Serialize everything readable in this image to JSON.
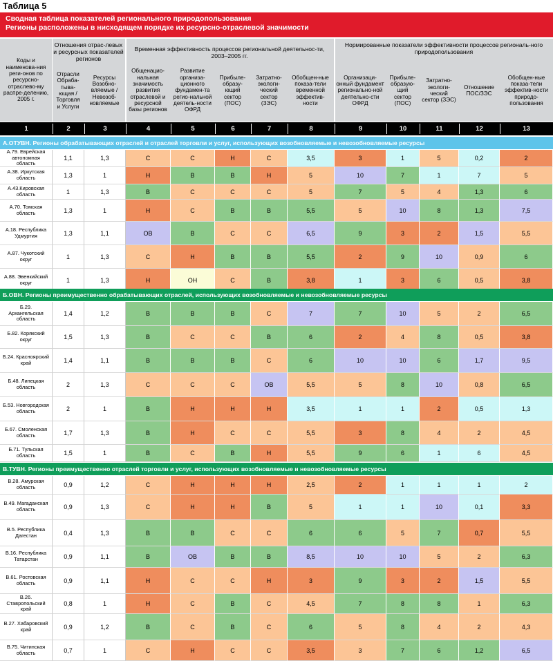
{
  "table_label": "Таблица 5",
  "title": {
    "line1": "Сводная таблица показателей регионального природопользования",
    "line2": "Регионы расположены в нисходящем порядке их ресурсно-отраслевой значимости"
  },
  "header": {
    "col1": "Коды и наименова-ния реги-онов по ресурсно-отраслево-му распре-делению, 2005 г.",
    "group_relations": "Отношения отрас-левых и ресурсных показателей регионов",
    "group_time": "Временная эффективность процессов региональной деятельнос-ти, 2003–2005 гг.",
    "group_norm": "Нормированные показатели эффективности процессов региональ-ного природопользования",
    "col2": "Отрасли Обраба-тыва-ющая / Торговля и Услуги",
    "col3": "Ресурсы Возобно-вляемые / Невозоб-новляемые",
    "col4": "Общенацио-нальная значимость развития отраслевой и ресурсной базы регионов",
    "col5": "Развитие организа-ционного фундамен-та регио-нальной деятель-ности ОФРД",
    "col6": "Прибыле-образу-ющий сектор (ПОС)",
    "col7": "Затратно-экологи-ческий сектор (ЗЭС)",
    "col8": "Обобщен-ные показа-тели временной эффектив-ности",
    "col9": "Организаци-онный фундамент регионально-ной деятельно-сти ОФРД",
    "col10": "Прибыле-образую-щий сектор (ПОС)",
    "col11": "Затратно-экологи-ческий сектор (ЗЭС)",
    "col12": "Отношение ПОС/ЗЭС",
    "col13": "Обобщен-ные показа-тели эффектив-ности природо-пользования"
  },
  "col_numbers": [
    "1",
    "2",
    "3",
    "4",
    "5",
    "6",
    "7",
    "8",
    "9",
    "10",
    "11",
    "12",
    "13"
  ],
  "colors": {
    "title_bg": "#e01b2b",
    "section_A": "#5ec4ea",
    "section_B": "#0f9e5a",
    "section_V": "#0f9e5a",
    "H": "#ef8d5d",
    "C": "#fcc596",
    "B": "#8dca8b",
    "OV": "#c6c4f2",
    "ON": "#fbfcd7",
    "L": "#ccf7f7"
  },
  "sections": [
    {
      "title": "А.ОТУВН. Регионы обрабатывающих отраслей и отраслей торговли и услуг, использующих возобновляемые и невозобновляемые ресурсы",
      "color": "#5ec4ea",
      "rows": [
        {
          "name": "А.79. Еврейская автономная область",
          "c2": "1,1",
          "c3": "1,3",
          "c4": [
            "С",
            "C"
          ],
          "c5": [
            "С",
            "C"
          ],
          "c6": [
            "Н",
            "H"
          ],
          "c7": [
            "С",
            "C"
          ],
          "c8": [
            "3,5",
            "L"
          ],
          "c9": [
            "3",
            "H"
          ],
          "c10": [
            "1",
            "L"
          ],
          "c11": [
            "5",
            "C"
          ],
          "c12": [
            "0,2",
            "L"
          ],
          "c13": [
            "2",
            "H"
          ]
        },
        {
          "name": "А.38. Иркутская область",
          "c2": "1,3",
          "c3": "1",
          "c4": [
            "Н",
            "H"
          ],
          "c5": [
            "В",
            "B"
          ],
          "c6": [
            "В",
            "B"
          ],
          "c7": [
            "Н",
            "H"
          ],
          "c8": [
            "5",
            "C"
          ],
          "c9": [
            "10",
            "OV"
          ],
          "c10": [
            "7",
            "B"
          ],
          "c11": [
            "1",
            "L"
          ],
          "c12": [
            "7",
            "L"
          ],
          "c13": [
            "5",
            "C"
          ]
        },
        {
          "name": "А.43.Кировская область",
          "c2": "1",
          "c3": "1,3",
          "c4": [
            "В",
            "B"
          ],
          "c5": [
            "С",
            "C"
          ],
          "c6": [
            "С",
            "C"
          ],
          "c7": [
            "С",
            "C"
          ],
          "c8": [
            "5",
            "C"
          ],
          "c9": [
            "7",
            "B"
          ],
          "c10": [
            "5",
            "C"
          ],
          "c11": [
            "4",
            "C"
          ],
          "c12": [
            "1,3",
            "B"
          ],
          "c13": [
            "6",
            "B"
          ]
        },
        {
          "name": "А.70. Томская область",
          "c2": "1,3",
          "c3": "1",
          "c4": [
            "Н",
            "H"
          ],
          "c5": [
            "С",
            "C"
          ],
          "c6": [
            "В",
            "B"
          ],
          "c7": [
            "В",
            "B"
          ],
          "c8": [
            "5,5",
            "B"
          ],
          "c9": [
            "5",
            "C"
          ],
          "c10": [
            "10",
            "OV"
          ],
          "c11": [
            "8",
            "B"
          ],
          "c12": [
            "1,3",
            "B"
          ],
          "c13": [
            "7,5",
            "OV"
          ]
        },
        {
          "name": "А.18. Республика Удмуртия",
          "c2": "1,3",
          "c3": "1,1",
          "c4": [
            "ОВ",
            "OV"
          ],
          "c5": [
            "В",
            "B"
          ],
          "c6": [
            "С",
            "C"
          ],
          "c7": [
            "С",
            "C"
          ],
          "c8": [
            "6,5",
            "OV"
          ],
          "c9": [
            "9",
            "B"
          ],
          "c10": [
            "3",
            "H"
          ],
          "c11": [
            "2",
            "H"
          ],
          "c12": [
            "1,5",
            "OV"
          ],
          "c13": [
            "5,5",
            "C"
          ]
        },
        {
          "name": "А.87. Чукотский округ",
          "c2": "1",
          "c3": "1,3",
          "c4": [
            "С",
            "C"
          ],
          "c5": [
            "Н",
            "H"
          ],
          "c6": [
            "В",
            "B"
          ],
          "c7": [
            "В",
            "B"
          ],
          "c8": [
            "5,5",
            "B"
          ],
          "c9": [
            "2",
            "H"
          ],
          "c10": [
            "9",
            "B"
          ],
          "c11": [
            "10",
            "OV"
          ],
          "c12": [
            "0,9",
            "C"
          ],
          "c13": [
            "6",
            "B"
          ]
        },
        {
          "name": "А.88. Эвенкийский округ",
          "c2": "1",
          "c3": "1,3",
          "c4": [
            "Н",
            "H"
          ],
          "c5": [
            "ОН",
            "ON"
          ],
          "c6": [
            "С",
            "C"
          ],
          "c7": [
            "В",
            "B"
          ],
          "c8": [
            "3,8",
            "H"
          ],
          "c9": [
            "1",
            "L"
          ],
          "c10": [
            "3",
            "H"
          ],
          "c11": [
            "6",
            "B"
          ],
          "c12": [
            "0,5",
            "C"
          ],
          "c13": [
            "3,8",
            "H"
          ]
        }
      ]
    },
    {
      "title": "Б.ОВН. Регионы преимущественно обрабатывающих отраслей, использующих возобновляемые и невозобновляемые ресурсы",
      "color": "#0f9e5a",
      "rows": [
        {
          "name": "Б.29. Архангельская область",
          "c2": "1,4",
          "c3": "1,2",
          "c4": [
            "В",
            "B"
          ],
          "c5": [
            "В",
            "B"
          ],
          "c6": [
            "В",
            "B"
          ],
          "c7": [
            "С",
            "C"
          ],
          "c8": [
            "7",
            "OV"
          ],
          "c9": [
            "7",
            "B"
          ],
          "c10": [
            "10",
            "OV"
          ],
          "c11": [
            "5",
            "C"
          ],
          "c12": [
            "2",
            "C"
          ],
          "c13": [
            "6,5",
            "B"
          ]
        },
        {
          "name": "Б.82. Корякский округ",
          "c2": "1,5",
          "c3": "1,3",
          "c4": [
            "В",
            "B"
          ],
          "c5": [
            "С",
            "C"
          ],
          "c6": [
            "С",
            "C"
          ],
          "c7": [
            "В",
            "B"
          ],
          "c8": [
            "6",
            "B"
          ],
          "c9": [
            "2",
            "H"
          ],
          "c10": [
            "4",
            "C"
          ],
          "c11": [
            "8",
            "B"
          ],
          "c12": [
            "0,5",
            "C"
          ],
          "c13": [
            "3,8",
            "H"
          ]
        },
        {
          "name": "Б.24. Красноярский край",
          "c2": "1,4",
          "c3": "1,1",
          "c4": [
            "В",
            "B"
          ],
          "c5": [
            "В",
            "B"
          ],
          "c6": [
            "В",
            "B"
          ],
          "c7": [
            "С",
            "C"
          ],
          "c8": [
            "6",
            "B"
          ],
          "c9": [
            "10",
            "OV"
          ],
          "c10": [
            "10",
            "OV"
          ],
          "c11": [
            "6",
            "B"
          ],
          "c12": [
            "1,7",
            "OV"
          ],
          "c13": [
            "9,5",
            "OV"
          ]
        },
        {
          "name": "Б.48. Липецкая область",
          "c2": "2",
          "c3": "1,3",
          "c4": [
            "С",
            "C"
          ],
          "c5": [
            "С",
            "C"
          ],
          "c6": [
            "С",
            "C"
          ],
          "c7": [
            "ОВ",
            "OV"
          ],
          "c8": [
            "5,5",
            "C"
          ],
          "c9": [
            "5",
            "C"
          ],
          "c10": [
            "8",
            "B"
          ],
          "c11": [
            "10",
            "OV"
          ],
          "c12": [
            "0,8",
            "C"
          ],
          "c13": [
            "6,5",
            "B"
          ]
        },
        {
          "name": "Б.53. Новгородская область",
          "c2": "2",
          "c3": "1",
          "c4": [
            "В",
            "B"
          ],
          "c5": [
            "Н",
            "H"
          ],
          "c6": [
            "Н",
            "H"
          ],
          "c7": [
            "Н",
            "H"
          ],
          "c8": [
            "3,5",
            "L"
          ],
          "c9": [
            "1",
            "L"
          ],
          "c10": [
            "1",
            "L"
          ],
          "c11": [
            "2",
            "H"
          ],
          "c12": [
            "0,5",
            "L"
          ],
          "c13": [
            "1,3",
            "L"
          ]
        },
        {
          "name": "Б.67. Смоленская область",
          "c2": "1,7",
          "c3": "1,3",
          "c4": [
            "В",
            "B"
          ],
          "c5": [
            "Н",
            "H"
          ],
          "c6": [
            "С",
            "C"
          ],
          "c7": [
            "С",
            "C"
          ],
          "c8": [
            "5,5",
            "C"
          ],
          "c9": [
            "3",
            "H"
          ],
          "c10": [
            "8",
            "B"
          ],
          "c11": [
            "4",
            "C"
          ],
          "c12": [
            "2",
            "C"
          ],
          "c13": [
            "4,5",
            "C"
          ]
        },
        {
          "name": "Б.71. Тульская область",
          "c2": "1,5",
          "c3": "1",
          "c4": [
            "В",
            "B"
          ],
          "c5": [
            "С",
            "C"
          ],
          "c6": [
            "В",
            "B"
          ],
          "c7": [
            "Н",
            "H"
          ],
          "c8": [
            "5,5",
            "C"
          ],
          "c9": [
            "9",
            "B"
          ],
          "c10": [
            "6",
            "B"
          ],
          "c11": [
            "1",
            "L"
          ],
          "c12": [
            "6",
            "L"
          ],
          "c13": [
            "4,5",
            "C"
          ]
        }
      ]
    },
    {
      "title": "В.ТУВН. Регионы преимущественно отраслей торговли и услуг, использующих возобновляемые и невозобновляемые ресурсы",
      "color": "#0f9e5a",
      "rows": [
        {
          "name": "В.28. Амурская область",
          "c2": "0,9",
          "c3": "1,2",
          "c4": [
            "С",
            "C"
          ],
          "c5": [
            "Н",
            "H"
          ],
          "c6": [
            "Н",
            "H"
          ],
          "c7": [
            "Н",
            "H"
          ],
          "c8": [
            "2,5",
            "C"
          ],
          "c9": [
            "2",
            "H"
          ],
          "c10": [
            "1",
            "L"
          ],
          "c11": [
            "1",
            "L"
          ],
          "c12": [
            "1",
            "L"
          ],
          "c13": [
            "2",
            "L"
          ]
        },
        {
          "name": "В.49. Магаданская область",
          "c2": "0,9",
          "c3": "1,3",
          "c4": [
            "С",
            "C"
          ],
          "c5": [
            "Н",
            "H"
          ],
          "c6": [
            "Н",
            "H"
          ],
          "c7": [
            "В",
            "B"
          ],
          "c8": [
            "5",
            "C"
          ],
          "c9": [
            "1",
            "L"
          ],
          "c10": [
            "1",
            "L"
          ],
          "c11": [
            "10",
            "OV"
          ],
          "c12": [
            "0,1",
            "L"
          ],
          "c13": [
            "3,3",
            "H"
          ]
        },
        {
          "name": "В.5. Республика Дагестан",
          "c2": "0,4",
          "c3": "1,3",
          "c4": [
            "В",
            "B"
          ],
          "c5": [
            "В",
            "B"
          ],
          "c6": [
            "С",
            "C"
          ],
          "c7": [
            "С",
            "C"
          ],
          "c8": [
            "6",
            "B"
          ],
          "c9": [
            "6",
            "B"
          ],
          "c10": [
            "5",
            "C"
          ],
          "c11": [
            "7",
            "B"
          ],
          "c12": [
            "0,7",
            "H"
          ],
          "c13": [
            "5,5",
            "C"
          ]
        },
        {
          "name": "В.16. Республика Татарстан",
          "c2": "0,9",
          "c3": "1,1",
          "c4": [
            "В",
            "B"
          ],
          "c5": [
            "ОВ",
            "OV"
          ],
          "c6": [
            "В",
            "B"
          ],
          "c7": [
            "В",
            "B"
          ],
          "c8": [
            "8,5",
            "OV"
          ],
          "c9": [
            "10",
            "OV"
          ],
          "c10": [
            "10",
            "OV"
          ],
          "c11": [
            "5",
            "C"
          ],
          "c12": [
            "2",
            "C"
          ],
          "c13": [
            "6,3",
            "B"
          ]
        },
        {
          "name": "В.61. Ростовская область",
          "c2": "0,9",
          "c3": "1,1",
          "c4": [
            "Н",
            "H"
          ],
          "c5": [
            "С",
            "C"
          ],
          "c6": [
            "С",
            "C"
          ],
          "c7": [
            "Н",
            "H"
          ],
          "c8": [
            "3",
            "H"
          ],
          "c9": [
            "9",
            "B"
          ],
          "c10": [
            "3",
            "H"
          ],
          "c11": [
            "2",
            "H"
          ],
          "c12": [
            "1,5",
            "OV"
          ],
          "c13": [
            "5,5",
            "C"
          ]
        },
        {
          "name": "В.26. Ставропольский край",
          "c2": "0,8",
          "c3": "1",
          "c4": [
            "Н",
            "H"
          ],
          "c5": [
            "С",
            "C"
          ],
          "c6": [
            "В",
            "B"
          ],
          "c7": [
            "С",
            "C"
          ],
          "c8": [
            "4,5",
            "C"
          ],
          "c9": [
            "7",
            "B"
          ],
          "c10": [
            "8",
            "B"
          ],
          "c11": [
            "8",
            "B"
          ],
          "c12": [
            "1",
            "C"
          ],
          "c13": [
            "6,3",
            "B"
          ]
        },
        {
          "name": "В.27. Хабаровский край",
          "c2": "0,9",
          "c3": "1,2",
          "c4": [
            "В",
            "B"
          ],
          "c5": [
            "С",
            "C"
          ],
          "c6": [
            "В",
            "B"
          ],
          "c7": [
            "С",
            "C"
          ],
          "c8": [
            "6",
            "B"
          ],
          "c9": [
            "5",
            "C"
          ],
          "c10": [
            "8",
            "B"
          ],
          "c11": [
            "4",
            "C"
          ],
          "c12": [
            "2",
            "C"
          ],
          "c13": [
            "4,3",
            "C"
          ]
        },
        {
          "name": "В.75. Читинская область",
          "c2": "0,7",
          "c3": "1",
          "c4": [
            "С",
            "C"
          ],
          "c5": [
            "Н",
            "H"
          ],
          "c6": [
            "С",
            "C"
          ],
          "c7": [
            "С",
            "C"
          ],
          "c8": [
            "3,5",
            "H"
          ],
          "c9": [
            "3",
            "C"
          ],
          "c10": [
            "7",
            "B"
          ],
          "c11": [
            "6",
            "B"
          ],
          "c12": [
            "1,2",
            "B"
          ],
          "c13": [
            "6,5",
            "OV"
          ]
        }
      ]
    }
  ]
}
